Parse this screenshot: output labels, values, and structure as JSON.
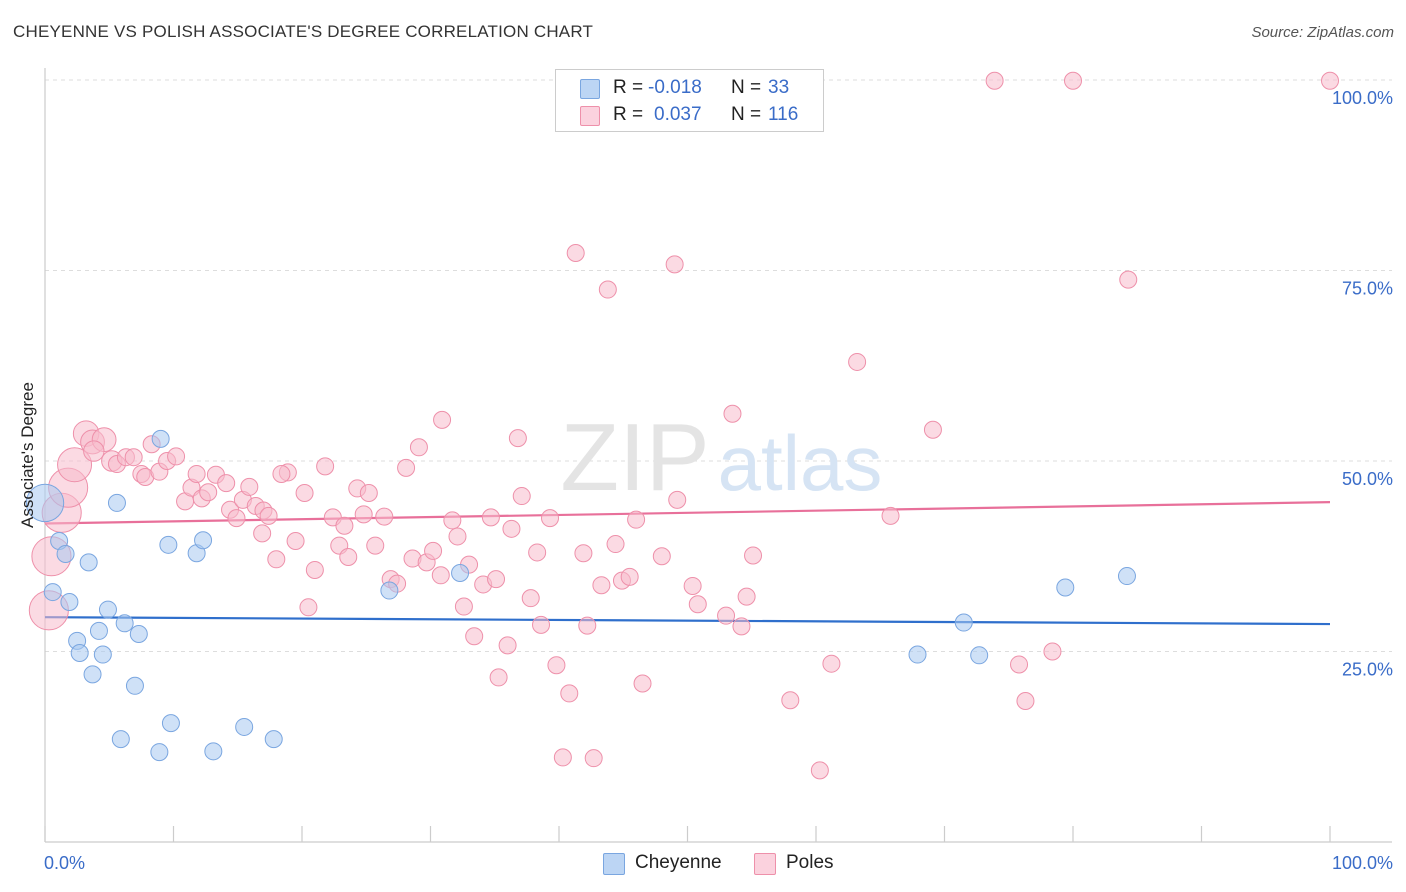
{
  "title": "CHEYENNE VS POLISH ASSOCIATE'S DEGREE CORRELATION CHART",
  "source": "Source: ZipAtlas.com",
  "watermark": {
    "zip": "ZIP",
    "atlas": "atlas"
  },
  "legend_top": [
    {
      "r_label": "R =",
      "r_value": "-0.018",
      "n_label": "N =",
      "n_value": "33",
      "color": "#a8c8f0"
    },
    {
      "r_label": "R =",
      "r_value": "0.037",
      "n_label": "N =",
      "n_value": "116",
      "color": "#f8bccc"
    }
  ],
  "legend_bottom": [
    {
      "label": "Cheyenne",
      "color": "#a8c8f0"
    },
    {
      "label": "Poles",
      "color": "#f8bccc"
    }
  ],
  "chart_data": {
    "type": "scatter",
    "title": "CHEYENNE VS POLISH ASSOCIATE'S DEGREE CORRELATION CHART",
    "xlabel": "",
    "ylabel": "Associate's Degree",
    "xlim": [
      0,
      100
    ],
    "ylim": [
      0,
      100
    ],
    "x_tick_labels": [
      "0.0%",
      "100.0%"
    ],
    "y_ticks": [
      {
        "value": 25,
        "label": "25.0%"
      },
      {
        "value": 50,
        "label": "50.0%"
      },
      {
        "value": 75,
        "label": "75.0%"
      },
      {
        "value": 100,
        "label": "100.0%"
      }
    ],
    "grid": true,
    "series": [
      {
        "name": "Cheyenne",
        "color": "#a8c8f0",
        "stroke": "#7aa6e0",
        "line_color": "#2f6fcc",
        "trend": {
          "x": [
            0,
            100
          ],
          "y": [
            29.5,
            28.6
          ]
        },
        "points": [
          [
            0.0,
            44.5,
            2.2
          ],
          [
            1.1,
            39.5,
            1
          ],
          [
            1.6,
            37.8,
            1
          ],
          [
            0.6,
            32.8,
            1
          ],
          [
            3.4,
            36.7,
            1
          ],
          [
            1.9,
            31.5,
            1
          ],
          [
            2.5,
            26.4,
            1
          ],
          [
            2.7,
            24.8,
            1
          ],
          [
            3.7,
            22.0,
            1
          ],
          [
            4.2,
            27.7,
            1
          ],
          [
            4.5,
            24.6,
            1
          ],
          [
            4.9,
            30.5,
            1
          ],
          [
            5.6,
            44.5,
            1
          ],
          [
            6.2,
            28.7,
            1
          ],
          [
            7.3,
            27.3,
            1
          ],
          [
            7.0,
            20.5,
            1
          ],
          [
            5.9,
            13.5,
            1
          ],
          [
            8.9,
            11.8,
            1
          ],
          [
            9.8,
            15.6,
            1
          ],
          [
            9.6,
            39.0,
            1
          ],
          [
            9.0,
            52.9,
            1
          ],
          [
            11.8,
            37.9,
            1
          ],
          [
            12.3,
            39.6,
            1
          ],
          [
            13.1,
            11.9,
            1
          ],
          [
            15.5,
            15.1,
            1
          ],
          [
            17.8,
            13.5,
            1
          ],
          [
            26.8,
            33.0,
            1
          ],
          [
            32.3,
            35.3,
            1
          ],
          [
            67.9,
            24.6,
            1
          ],
          [
            71.5,
            28.8,
            1
          ],
          [
            72.7,
            24.5,
            1
          ],
          [
            79.4,
            33.4,
            1
          ],
          [
            84.2,
            34.9,
            1
          ]
        ]
      },
      {
        "name": "Poles",
        "color": "#f8bccc",
        "stroke": "#ee90aa",
        "line_color": "#e8709a",
        "trend": {
          "x": [
            0,
            100
          ],
          "y": [
            41.8,
            44.6
          ]
        },
        "points": [
          [
            0.5,
            37.5,
            2.3
          ],
          [
            0.3,
            30.4,
            2.3
          ],
          [
            1.3,
            43.2,
            2.3
          ],
          [
            1.8,
            46.5,
            2.3
          ],
          [
            2.3,
            49.5,
            2.0
          ],
          [
            3.2,
            53.6,
            1.5
          ],
          [
            3.7,
            52.5,
            1.4
          ],
          [
            4.6,
            52.8,
            1.4
          ],
          [
            3.8,
            51.3,
            1.2
          ],
          [
            5.2,
            50.0,
            1.2
          ],
          [
            5.6,
            49.6,
            1
          ],
          [
            6.3,
            50.5,
            1
          ],
          [
            6.9,
            50.5,
            1
          ],
          [
            7.5,
            48.3,
            1
          ],
          [
            7.8,
            47.9,
            1
          ],
          [
            8.3,
            52.2,
            1
          ],
          [
            8.9,
            48.6,
            1
          ],
          [
            9.5,
            50.0,
            1
          ],
          [
            10.2,
            50.6,
            1
          ],
          [
            10.9,
            44.7,
            1
          ],
          [
            11.4,
            46.5,
            1
          ],
          [
            11.8,
            48.3,
            1
          ],
          [
            12.2,
            45.1,
            1
          ],
          [
            12.7,
            45.9,
            1
          ],
          [
            13.3,
            48.2,
            1
          ],
          [
            14.1,
            47.1,
            1
          ],
          [
            14.4,
            43.6,
            1
          ],
          [
            14.9,
            42.5,
            1
          ],
          [
            15.4,
            44.9,
            1
          ],
          [
            15.9,
            46.6,
            1
          ],
          [
            16.4,
            44.1,
            1
          ],
          [
            17.0,
            43.5,
            1
          ],
          [
            17.4,
            42.8,
            1
          ],
          [
            16.9,
            40.5,
            1
          ],
          [
            18.9,
            48.5,
            1
          ],
          [
            18.4,
            48.3,
            1
          ],
          [
            18.0,
            37.1,
            1
          ],
          [
            19.5,
            39.5,
            1
          ],
          [
            20.2,
            45.8,
            1
          ],
          [
            20.5,
            30.8,
            1
          ],
          [
            21.0,
            35.7,
            1
          ],
          [
            21.8,
            49.3,
            1
          ],
          [
            22.4,
            42.6,
            1
          ],
          [
            22.9,
            38.9,
            1
          ],
          [
            23.3,
            41.5,
            1
          ],
          [
            23.6,
            37.4,
            1
          ],
          [
            24.3,
            46.4,
            1
          ],
          [
            24.8,
            43.0,
            1
          ],
          [
            25.2,
            45.8,
            1
          ],
          [
            25.7,
            38.9,
            1
          ],
          [
            26.4,
            42.7,
            1
          ],
          [
            26.9,
            34.5,
            1
          ],
          [
            27.4,
            33.9,
            1
          ],
          [
            28.1,
            49.1,
            1
          ],
          [
            28.6,
            37.2,
            1
          ],
          [
            29.1,
            51.8,
            1
          ],
          [
            29.7,
            36.7,
            1
          ],
          [
            30.2,
            38.2,
            1
          ],
          [
            30.8,
            35.0,
            1
          ],
          [
            30.9,
            55.4,
            1
          ],
          [
            31.7,
            42.2,
            1
          ],
          [
            32.1,
            40.1,
            1
          ],
          [
            32.6,
            30.9,
            1
          ],
          [
            33.0,
            36.4,
            1
          ],
          [
            33.4,
            27.0,
            1
          ],
          [
            34.1,
            33.8,
            1
          ],
          [
            34.7,
            42.6,
            1
          ],
          [
            35.1,
            34.5,
            1
          ],
          [
            35.3,
            21.6,
            1
          ],
          [
            36.0,
            25.8,
            1
          ],
          [
            36.3,
            41.1,
            1
          ],
          [
            36.8,
            53.0,
            1
          ],
          [
            37.1,
            45.4,
            1
          ],
          [
            37.8,
            32.0,
            1
          ],
          [
            38.3,
            38.0,
            1
          ],
          [
            38.6,
            28.5,
            1
          ],
          [
            39.3,
            42.5,
            1
          ],
          [
            39.8,
            23.2,
            1
          ],
          [
            40.3,
            11.1,
            1
          ],
          [
            40.8,
            19.5,
            1
          ],
          [
            41.3,
            77.3,
            1
          ],
          [
            41.9,
            37.9,
            1
          ],
          [
            42.2,
            28.4,
            1
          ],
          [
            42.7,
            11.0,
            1
          ],
          [
            43.3,
            33.7,
            1
          ],
          [
            43.8,
            72.5,
            1
          ],
          [
            44.4,
            39.1,
            1
          ],
          [
            44.9,
            34.3,
            1
          ],
          [
            45.5,
            34.8,
            1
          ],
          [
            46.0,
            42.3,
            1
          ],
          [
            46.5,
            20.8,
            1
          ],
          [
            48.0,
            37.5,
            1
          ],
          [
            49.0,
            75.8,
            1
          ],
          [
            49.2,
            44.9,
            1
          ],
          [
            50.4,
            33.6,
            1
          ],
          [
            50.8,
            31.2,
            1
          ],
          [
            53.0,
            29.7,
            1
          ],
          [
            53.5,
            56.2,
            1
          ],
          [
            54.2,
            28.3,
            1
          ],
          [
            54.6,
            32.2,
            1
          ],
          [
            55.1,
            37.6,
            1
          ],
          [
            58.0,
            18.6,
            1
          ],
          [
            60.3,
            9.4,
            1
          ],
          [
            61.2,
            23.4,
            1
          ],
          [
            63.2,
            63.0,
            1
          ],
          [
            65.8,
            42.8,
            1
          ],
          [
            69.1,
            54.1,
            1
          ],
          [
            73.9,
            99.9,
            1
          ],
          [
            75.8,
            23.3,
            1
          ],
          [
            76.3,
            18.5,
            1
          ],
          [
            78.4,
            25.0,
            1
          ],
          [
            80.0,
            99.9,
            1
          ],
          [
            84.3,
            73.8,
            1
          ],
          [
            100.0,
            99.9,
            1
          ]
        ]
      }
    ]
  }
}
